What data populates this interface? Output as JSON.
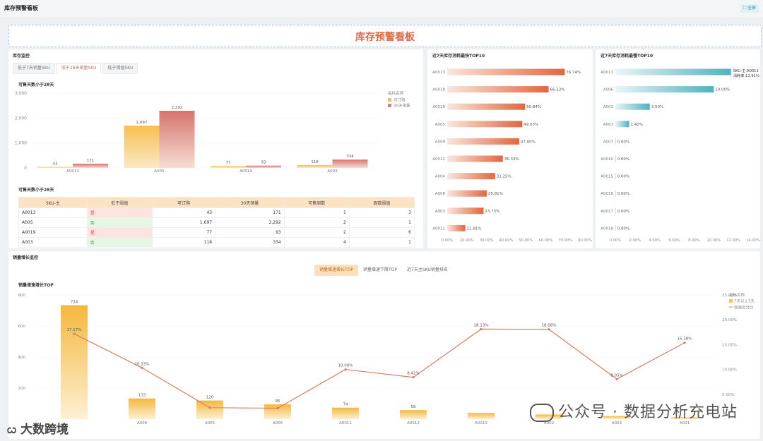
{
  "header": {
    "title": "库存预警看板",
    "fullscreen_label": "全屏"
  },
  "banner": {
    "title": "库存预警看板"
  },
  "inventory": {
    "title": "库存监控",
    "tabs": [
      "低于7天销量SKU",
      "低于28天销量SKU",
      "低于阈值SKU"
    ],
    "active_tab": 1,
    "chart_title": "可售天数小于28天",
    "table_title": "可售天数小于28天",
    "table": {
      "headers": [
        "SKU-主",
        "低于阈值",
        "可订购",
        "30天销量",
        "可售周数",
        "周数阈值"
      ],
      "rows": [
        [
          "A0013",
          "是",
          "43",
          "171",
          "1",
          "3"
        ],
        [
          "A005",
          "否",
          "1,697",
          "2,292",
          "2",
          "1"
        ],
        [
          "A0019",
          "是",
          "77",
          "93",
          "2",
          "6"
        ],
        [
          "A003",
          "否",
          "118",
          "334",
          "4",
          "1"
        ]
      ]
    }
  },
  "fast_panel": {
    "title": "近7天库存消耗最快TOP10"
  },
  "slow_panel": {
    "title": "近7天库存消耗最慢TOP10"
  },
  "growth": {
    "title": "销量增长监控",
    "tabs": [
      "销量增速增长TOP",
      "销量增速下降TOP",
      "近7天主SKU销量排名"
    ],
    "active_tab": 0,
    "chart_title": "销量增速增长TOP"
  },
  "watermark": {
    "text1": "公众号 · 数据分析充电站",
    "text2": "大数跨境"
  },
  "colors": {
    "orange": "#f5c25a",
    "red": "#d9807a",
    "line": "#e07a5f",
    "teal": "#55b7c3",
    "accent": "#e06744"
  },
  "chart_data": [
    {
      "type": "bar",
      "title": "可售天数小于28天",
      "categories": [
        "A0013",
        "A005",
        "A0019",
        "A003"
      ],
      "series": [
        {
          "name": "可订购",
          "values": [
            43,
            1697,
            77,
            118
          ]
        },
        {
          "name": "30天销量",
          "values": [
            171,
            2292,
            93,
            334
          ]
        }
      ],
      "ylim": [
        0,
        3000
      ],
      "yticks": [
        "0",
        "1,000",
        "2,000",
        "3,000"
      ],
      "value_labels": [
        [
          "43",
          "1,697",
          "77",
          "118"
        ],
        [
          "171",
          "2,292",
          "93",
          "334"
        ]
      ],
      "legend_title": "指标名称",
      "legend": "right"
    },
    {
      "type": "bar",
      "title": "近7天库存消耗最快TOP10",
      "orientation": "horizontal",
      "categories": [
        "A0013",
        "A0018",
        "A0019",
        "A005",
        "A009",
        "A0012",
        "A004",
        "A008",
        "A003",
        "A0011"
      ],
      "values": [
        76.74,
        66.23,
        50.84,
        49.03,
        47.0,
        36.33,
        31.25,
        25.81,
        23.73,
        11.81
      ],
      "value_labels": [
        "76.74%",
        "66.23%",
        "50.84%",
        "49.03%",
        "47.00%",
        "36.33%",
        "31.25%",
        "25.81%",
        "23.73%",
        "11.81%"
      ],
      "xlim": [
        0,
        90
      ],
      "xticks": [
        "0.00%",
        "20.00%",
        "30.00%",
        "40.00%",
        "50.00%",
        "60.00%",
        "70.00%",
        "90.00%"
      ]
    },
    {
      "type": "bar",
      "title": "近7天库存消耗最慢TOP10",
      "orientation": "horizontal",
      "categories": [
        "A0011",
        "A006",
        "A002",
        "A001",
        "A007",
        "A0010",
        "A0015",
        "A0016",
        "A0017",
        "A0018"
      ],
      "values": [
        11.91,
        10.0,
        3.5,
        1.4,
        0,
        0,
        0,
        0,
        0,
        0
      ],
      "value_labels": [
        "",
        "10.00%",
        "3.50%",
        "1.40%",
        "0.00%",
        "0.00%",
        "0.00%",
        "0.00%",
        "0.00%",
        "0.00%"
      ],
      "tooltip": [
        "SKU-主:A0011",
        "消耗率:11.91%"
      ],
      "xlim": [
        0,
        14
      ],
      "xticks": [
        "0.00%",
        "2.00%",
        "4.00%",
        "6.00%",
        "8.00%",
        "10.00%",
        "12.00%",
        "14.00%"
      ]
    },
    {
      "type": "bar",
      "title": "销量增速增长TOP",
      "categories": [
        "",
        "A009",
        "A005",
        "A006",
        "A0011",
        "A0012",
        "A0013",
        "A002",
        "A003",
        "A001"
      ],
      "series": [
        {
          "name": "7天以上7天",
          "values": [
            734,
            133,
            120,
            95,
            74,
            58,
            40,
            30,
            20,
            12
          ]
        },
        {
          "name": "增速百分比",
          "type": "line",
          "values": [
            17.17,
            10.33,
            2.3,
            2.2,
            10.0,
            8.42,
            18.13,
            18.08,
            8.05,
            15.38
          ]
        }
      ],
      "bar_labels": [
        "734",
        "133",
        "120",
        "95",
        "74",
        "58",
        "",
        "",
        "",
        ""
      ],
      "line_labels": [
        "17.17%",
        "10.33%",
        "",
        "",
        "10.00%",
        "8.42%",
        "18.13%",
        "18.08%",
        "8.05%",
        "15.38%"
      ],
      "ylim": [
        0,
        800
      ],
      "yticks": [
        "200",
        "400",
        "600",
        "800"
      ],
      "y2lim": [
        0,
        25
      ],
      "y2ticks": [
        "5.00%",
        "10.00%",
        "15.00%",
        "20.00%",
        "25.00%"
      ],
      "legend_title": "指标名称",
      "legend": "right"
    }
  ]
}
